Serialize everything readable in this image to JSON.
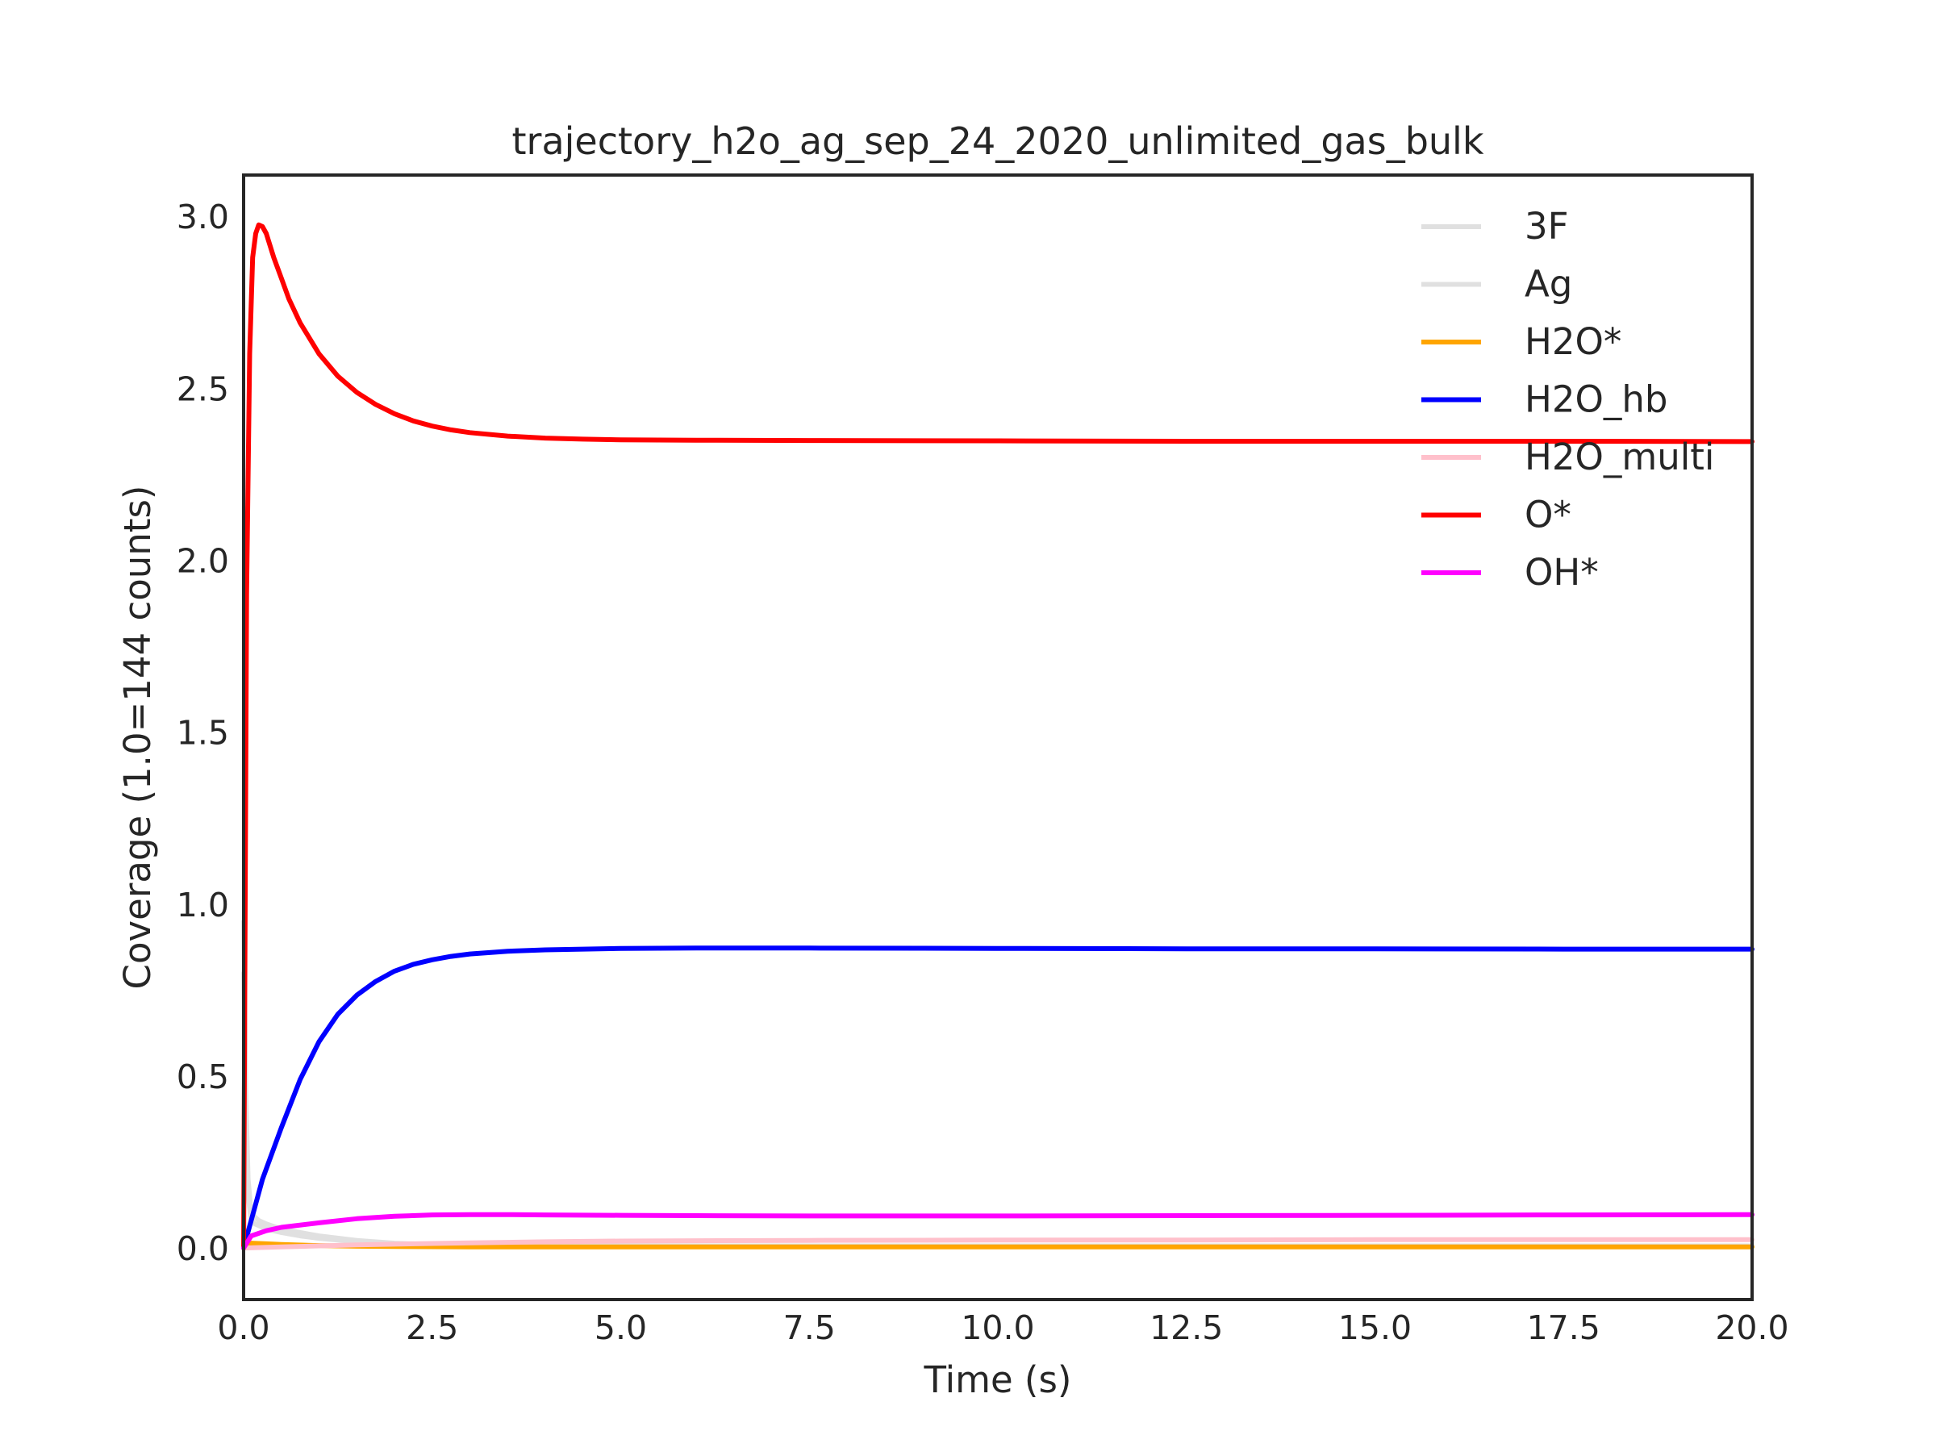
{
  "chart_data": {
    "type": "line",
    "title": "trajectory_h2o_ag_sep_24_2020_unlimited_gas_bulk",
    "xlabel": "Time (s)",
    "ylabel": "Coverage (1.0=144 counts)",
    "xlim": [
      0,
      20
    ],
    "ylim": [
      -0.15,
      3.12
    ],
    "xticks": [
      0.0,
      2.5,
      5.0,
      7.5,
      10.0,
      12.5,
      15.0,
      17.5,
      20.0
    ],
    "xtick_labels": [
      "0.0",
      "2.5",
      "5.0",
      "7.5",
      "10.0",
      "12.5",
      "15.0",
      "17.5",
      "20.0"
    ],
    "yticks": [
      0.0,
      0.5,
      1.0,
      1.5,
      2.0,
      2.5,
      3.0
    ],
    "ytick_labels": [
      "0.0",
      "0.5",
      "1.0",
      "1.5",
      "2.0",
      "2.5",
      "3.0"
    ],
    "grid": false,
    "legend": "top-right",
    "series": [
      {
        "name": "3F",
        "color": "#e0e0e0",
        "x": [
          0,
          0.03,
          0.06,
          0.1,
          0.15,
          0.2,
          0.3,
          0.5,
          0.75,
          1.0,
          1.5,
          2.0,
          2.5,
          3.0,
          4.0,
          5.0,
          7.5,
          10.0,
          12.5,
          15.0,
          17.5,
          20.0
        ],
        "y": [
          0.95,
          0.45,
          0.2,
          0.1,
          0.09,
          0.08,
          0.07,
          0.055,
          0.045,
          0.035,
          0.022,
          0.014,
          0.01,
          0.008,
          0.007,
          0.006,
          0.006,
          0.006,
          0.006,
          0.006,
          0.006,
          0.006
        ]
      },
      {
        "name": "Ag",
        "color": "#e0e0e0",
        "x": [
          0,
          0.03,
          0.06,
          0.1,
          0.15,
          0.2,
          0.3,
          0.5,
          0.75,
          1.0,
          1.5,
          2.0,
          2.5,
          3.0,
          4.0,
          5.0,
          7.5,
          10.0,
          12.5,
          15.0,
          17.5,
          20.0
        ],
        "y": [
          0.8,
          0.35,
          0.15,
          0.08,
          0.07,
          0.065,
          0.055,
          0.045,
          0.035,
          0.028,
          0.018,
          0.012,
          0.009,
          0.007,
          0.006,
          0.005,
          0.005,
          0.005,
          0.005,
          0.005,
          0.005,
          0.005
        ]
      },
      {
        "name": "H2O*",
        "color": "#ffa500",
        "x": [
          0,
          0.05,
          0.1,
          0.3,
          0.5,
          1.0,
          1.5,
          2.0,
          3.0,
          5.0,
          7.5,
          10.0,
          12.5,
          15.0,
          17.5,
          20.0
        ],
        "y": [
          0.0,
          0.012,
          0.014,
          0.012,
          0.01,
          0.007,
          0.005,
          0.004,
          0.003,
          0.003,
          0.003,
          0.003,
          0.003,
          0.003,
          0.003,
          0.003
        ]
      },
      {
        "name": "H2O_hb",
        "color": "#0000ff",
        "x": [
          0,
          0.1,
          0.25,
          0.5,
          0.75,
          1.0,
          1.25,
          1.5,
          1.75,
          2.0,
          2.25,
          2.5,
          2.75,
          3.0,
          3.5,
          4.0,
          5.0,
          6.0,
          7.5,
          10.0,
          12.5,
          15.0,
          17.5,
          20.0
        ],
        "y": [
          0.0,
          0.08,
          0.2,
          0.35,
          0.49,
          0.6,
          0.68,
          0.735,
          0.775,
          0.805,
          0.825,
          0.838,
          0.848,
          0.855,
          0.863,
          0.867,
          0.871,
          0.872,
          0.872,
          0.871,
          0.87,
          0.87,
          0.869,
          0.869
        ]
      },
      {
        "name": "H2O_multi",
        "color": "#ffc0cb",
        "x": [
          0,
          0.5,
          1.0,
          1.5,
          2.0,
          2.5,
          3.0,
          4.0,
          5.0,
          6.0,
          7.5,
          10.0,
          12.5,
          15.0,
          17.5,
          20.0
        ],
        "y": [
          0.0,
          0.003,
          0.006,
          0.009,
          0.011,
          0.013,
          0.015,
          0.018,
          0.02,
          0.021,
          0.022,
          0.023,
          0.023,
          0.024,
          0.024,
          0.024
        ]
      },
      {
        "name": "O*",
        "color": "#ff0000",
        "x": [
          0,
          0.04,
          0.08,
          0.12,
          0.16,
          0.2,
          0.25,
          0.3,
          0.4,
          0.5,
          0.6,
          0.75,
          1.0,
          1.25,
          1.5,
          1.75,
          2.0,
          2.25,
          2.5,
          2.75,
          3.0,
          3.5,
          4.0,
          4.5,
          5.0,
          6.0,
          7.5,
          10.0,
          12.5,
          15.0,
          17.5,
          20.0
        ],
        "y": [
          0.0,
          1.9,
          2.6,
          2.88,
          2.95,
          2.975,
          2.97,
          2.95,
          2.88,
          2.82,
          2.76,
          2.69,
          2.6,
          2.535,
          2.488,
          2.453,
          2.426,
          2.405,
          2.39,
          2.379,
          2.371,
          2.361,
          2.355,
          2.352,
          2.35,
          2.349,
          2.348,
          2.347,
          2.346,
          2.346,
          2.346,
          2.345
        ]
      },
      {
        "name": "OH*",
        "color": "#ff00ff",
        "x": [
          0,
          0.1,
          0.3,
          0.5,
          1.0,
          1.5,
          2.0,
          2.5,
          3.0,
          3.5,
          4.0,
          5.0,
          6.0,
          7.5,
          10.0,
          12.5,
          15.0,
          17.5,
          20.0
        ],
        "y": [
          0.0,
          0.035,
          0.05,
          0.06,
          0.073,
          0.085,
          0.092,
          0.096,
          0.097,
          0.097,
          0.096,
          0.095,
          0.094,
          0.093,
          0.093,
          0.094,
          0.095,
          0.096,
          0.097
        ]
      }
    ]
  }
}
